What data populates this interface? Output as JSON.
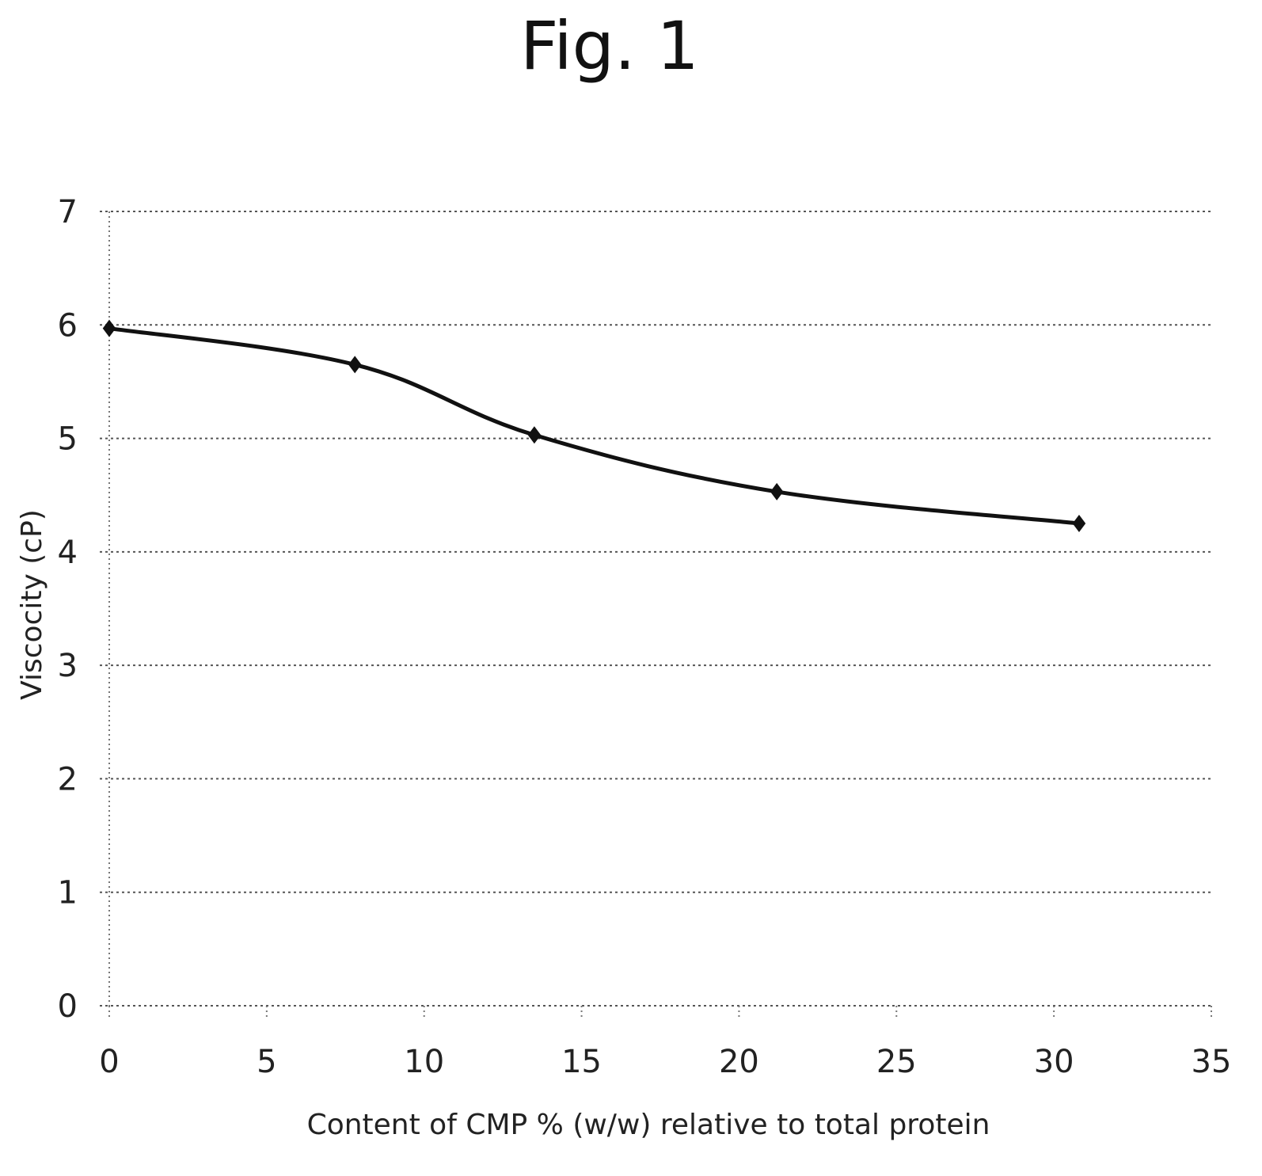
{
  "figure_title": "Fig. 1",
  "chart_data": {
    "type": "line",
    "title": "",
    "xlabel": "Content of CMP % (w/w) relative to total protein",
    "ylabel": "Viscocity (cP)",
    "xlim": [
      0,
      35
    ],
    "ylim": [
      0,
      7
    ],
    "x_ticks": [
      0,
      5,
      10,
      15,
      20,
      25,
      30,
      35
    ],
    "y_ticks": [
      0,
      1,
      2,
      3,
      4,
      5,
      6,
      7
    ],
    "grid": "horizontal dotted",
    "legend": "none",
    "marker": "diamond",
    "line_color": "#111111",
    "smoothed": true,
    "series": [
      {
        "x": [
          0,
          7.8,
          13.5,
          21.2,
          30.8
        ],
        "y": [
          5.97,
          5.65,
          5.03,
          4.53,
          4.25
        ]
      }
    ]
  }
}
